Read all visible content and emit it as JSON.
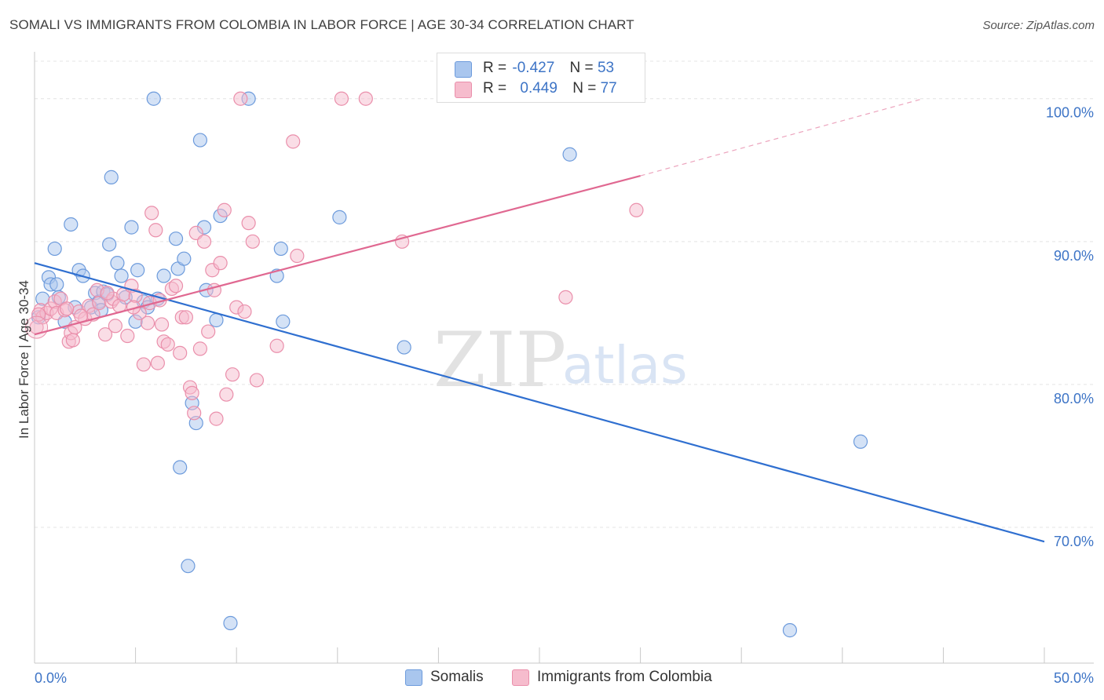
{
  "title": "SOMALI VS IMMIGRANTS FROM COLOMBIA IN LABOR FORCE | AGE 30-34 CORRELATION CHART",
  "source": "Source: ZipAtlas.com",
  "watermark": {
    "zip": "ZIP",
    "atlas": "atlas"
  },
  "legend": {
    "somali": {
      "r_label": "R =",
      "r_value": "-0.427",
      "n_label": "N =",
      "n_value": "53",
      "name": "Somalis"
    },
    "colombia": {
      "r_label": "R =",
      "r_value": "0.449",
      "n_label": "N =",
      "n_value": "77",
      "name": "Immigrants from Colombia"
    }
  },
  "colors": {
    "somali_fill": "#a9c6ee",
    "somali_stroke": "#6d9bdc",
    "somali_line": "#2f6fd0",
    "colombia_fill": "#f6bccd",
    "colombia_stroke": "#ea8fab",
    "colombia_line": "#e06891",
    "tick_label": "#3d74c6",
    "grid": "#e4e4e4"
  },
  "chart_data": {
    "type": "scatter",
    "title": "SOMALI VS IMMIGRANTS FROM COLOMBIA IN LABOR FORCE | AGE 30-34 CORRELATION CHART",
    "xlabel": "",
    "ylabel": "In Labor Force | Age 30-34",
    "xlim": [
      0,
      50
    ],
    "ylim": [
      60.5,
      103.5
    ],
    "x_tick_labels": [
      "0.0%",
      "50.0%"
    ],
    "y_ticks": [
      70,
      80,
      90,
      100
    ],
    "y_tick_labels": [
      "70.0%",
      "80.0%",
      "90.0%",
      "100.0%"
    ],
    "grid": "horizontal dashed",
    "legend_placement": "top-center and bottom",
    "series": [
      {
        "name": "Somalis",
        "trend": {
          "x0": 0,
          "y0": 88.5,
          "x1": 50,
          "y1": 69.0
        },
        "points": [
          [
            0.2,
            84.7
          ],
          [
            0.4,
            86.0
          ],
          [
            0.7,
            87.5
          ],
          [
            0.8,
            87.0
          ],
          [
            1.0,
            89.5
          ],
          [
            1.1,
            87.0
          ],
          [
            1.2,
            86.1
          ],
          [
            1.5,
            84.4
          ],
          [
            1.8,
            91.2
          ],
          [
            2.0,
            85.4
          ],
          [
            2.2,
            88.0
          ],
          [
            2.4,
            87.6
          ],
          [
            2.8,
            85.4
          ],
          [
            3.0,
            86.4
          ],
          [
            3.2,
            85.8
          ],
          [
            3.3,
            85.2
          ],
          [
            3.4,
            86.5
          ],
          [
            3.6,
            86.3
          ],
          [
            3.7,
            89.8
          ],
          [
            3.8,
            94.5
          ],
          [
            4.1,
            88.5
          ],
          [
            4.3,
            87.6
          ],
          [
            4.5,
            86.1
          ],
          [
            4.8,
            91.0
          ],
          [
            5.0,
            84.4
          ],
          [
            5.1,
            88.0
          ],
          [
            5.4,
            85.8
          ],
          [
            5.6,
            85.4
          ],
          [
            5.9,
            100.0
          ],
          [
            6.1,
            86.0
          ],
          [
            6.4,
            87.6
          ],
          [
            7.0,
            90.2
          ],
          [
            7.1,
            88.1
          ],
          [
            7.2,
            74.2
          ],
          [
            7.4,
            88.8
          ],
          [
            7.6,
            67.3
          ],
          [
            7.8,
            78.7
          ],
          [
            8.0,
            77.3
          ],
          [
            8.2,
            97.1
          ],
          [
            8.4,
            91.0
          ],
          [
            8.5,
            86.6
          ],
          [
            9.0,
            84.5
          ],
          [
            9.2,
            91.8
          ],
          [
            9.7,
            63.3
          ],
          [
            10.6,
            100.0
          ],
          [
            12.0,
            87.6
          ],
          [
            12.2,
            89.5
          ],
          [
            12.3,
            84.4
          ],
          [
            15.1,
            91.7
          ],
          [
            18.3,
            82.6
          ],
          [
            26.5,
            96.1
          ],
          [
            37.4,
            62.8
          ],
          [
            40.9,
            76.0
          ]
        ]
      },
      {
        "name": "Immigrants from Colombia",
        "trend": {
          "x0": 0,
          "y0": 83.5,
          "x1": 30,
          "y1": 94.6
        },
        "trend_extension": {
          "x0": 30,
          "y0": 94.6,
          "x1": 44,
          "y1": 100.0
        },
        "points": [
          [
            0.1,
            84.0
          ],
          [
            0.3,
            85.2
          ],
          [
            0.4,
            84.7
          ],
          [
            0.6,
            85.0
          ],
          [
            0.8,
            85.3
          ],
          [
            1.0,
            85.8
          ],
          [
            1.1,
            85.0
          ],
          [
            1.3,
            86.0
          ],
          [
            1.5,
            85.2
          ],
          [
            1.7,
            83.0
          ],
          [
            1.8,
            83.6
          ],
          [
            1.9,
            83.1
          ],
          [
            2.0,
            84.0
          ],
          [
            2.2,
            85.1
          ],
          [
            2.5,
            84.6
          ],
          [
            2.7,
            85.5
          ],
          [
            2.9,
            84.9
          ],
          [
            3.1,
            86.6
          ],
          [
            3.2,
            85.7
          ],
          [
            3.5,
            83.5
          ],
          [
            3.8,
            85.8
          ],
          [
            3.9,
            86.0
          ],
          [
            4.0,
            84.1
          ],
          [
            4.2,
            85.5
          ],
          [
            4.4,
            86.3
          ],
          [
            4.6,
            83.4
          ],
          [
            4.8,
            86.9
          ],
          [
            5.0,
            86.2
          ],
          [
            5.2,
            85.0
          ],
          [
            5.4,
            81.4
          ],
          [
            5.6,
            84.3
          ],
          [
            5.7,
            85.7
          ],
          [
            5.8,
            92.0
          ],
          [
            6.0,
            90.8
          ],
          [
            6.1,
            81.5
          ],
          [
            6.3,
            84.2
          ],
          [
            6.4,
            83.0
          ],
          [
            6.6,
            82.8
          ],
          [
            6.8,
            86.7
          ],
          [
            7.0,
            86.9
          ],
          [
            7.2,
            82.2
          ],
          [
            7.3,
            84.7
          ],
          [
            7.5,
            84.7
          ],
          [
            7.7,
            79.8
          ],
          [
            7.8,
            79.4
          ],
          [
            7.9,
            78.0
          ],
          [
            8.0,
            90.6
          ],
          [
            8.2,
            82.5
          ],
          [
            8.4,
            90.0
          ],
          [
            8.6,
            83.7
          ],
          [
            8.8,
            88.0
          ],
          [
            9.0,
            77.6
          ],
          [
            9.2,
            88.5
          ],
          [
            9.4,
            92.2
          ],
          [
            9.5,
            79.3
          ],
          [
            9.8,
            80.7
          ],
          [
            10.0,
            85.4
          ],
          [
            10.2,
            100.0
          ],
          [
            10.4,
            85.1
          ],
          [
            10.6,
            91.3
          ],
          [
            10.8,
            90.0
          ],
          [
            11.0,
            80.3
          ],
          [
            12.0,
            82.7
          ],
          [
            12.8,
            97.0
          ],
          [
            13.0,
            89.0
          ],
          [
            15.2,
            100.0
          ],
          [
            16.4,
            100.0
          ],
          [
            18.2,
            90.0
          ],
          [
            26.3,
            86.1
          ],
          [
            29.8,
            92.2
          ],
          [
            0.2,
            84.9
          ],
          [
            1.6,
            85.3
          ],
          [
            2.3,
            84.8
          ],
          [
            3.6,
            86.4
          ],
          [
            4.9,
            85.4
          ],
          [
            6.2,
            85.9
          ],
          [
            8.9,
            86.6
          ]
        ]
      }
    ]
  }
}
